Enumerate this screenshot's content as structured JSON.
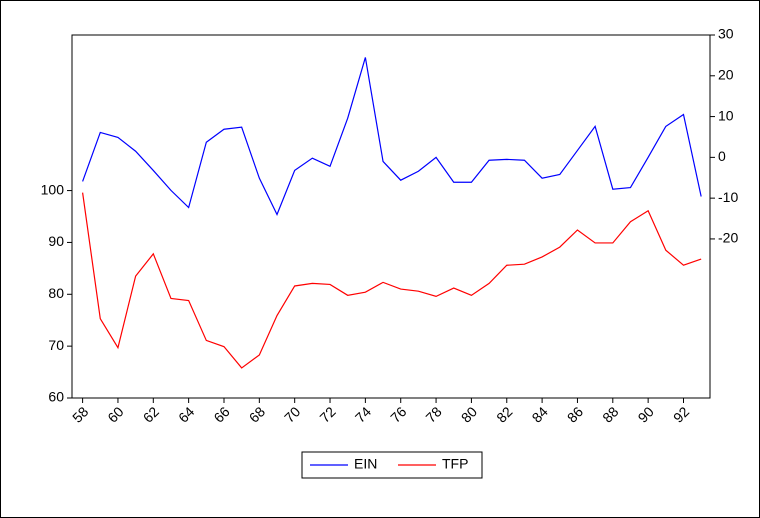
{
  "chart_data": {
    "type": "line",
    "x": [
      58,
      59,
      60,
      61,
      62,
      63,
      64,
      65,
      66,
      67,
      68,
      69,
      70,
      71,
      72,
      73,
      74,
      75,
      76,
      77,
      78,
      79,
      80,
      81,
      82,
      83,
      84,
      85,
      86,
      87,
      88,
      89,
      90,
      91,
      92,
      93
    ],
    "series": [
      {
        "name": "EIN",
        "color": "#0000ff",
        "axis": "y2",
        "values": [
          -5.9,
          6.1,
          4.9,
          1.5,
          -3.2,
          -8.1,
          -12.3,
          3.7,
          6.9,
          7.4,
          -5.1,
          -14,
          -3.2,
          -0.2,
          -2.2,
          9.6,
          24.5,
          -1,
          -5.6,
          -3.4,
          0,
          -6.1,
          -6.1,
          -0.7,
          -0.5,
          -0.7,
          -5.1,
          -4.2,
          1.7,
          7.6,
          -7.8,
          -7.4,
          0,
          7.6,
          10.5,
          -9.6
        ]
      },
      {
        "name": "TFP",
        "color": "#ff0000",
        "values": [
          99.6,
          75.3,
          69.7,
          83.5,
          87.8,
          79.2,
          78.8,
          71.1,
          69.9,
          65.8,
          68.3,
          75.9,
          81.6,
          82.1,
          81.9,
          79.8,
          80.4,
          82.3,
          81,
          80.6,
          79.6,
          81.2,
          79.8,
          82.1,
          85.6,
          85.8,
          87.2,
          89.1,
          92.4,
          89.9,
          89.9,
          94,
          96.1,
          88.5,
          85.6,
          86.8
        ]
      }
    ],
    "xlim": [
      57.4,
      93.5
    ],
    "xticks": [
      58,
      60,
      62,
      64,
      66,
      68,
      70,
      72,
      74,
      76,
      78,
      80,
      82,
      84,
      86,
      88,
      90,
      92
    ],
    "ylim": [
      60,
      130
    ],
    "yticks": [
      60,
      70,
      80,
      90,
      100
    ],
    "y2lim": [
      -59,
      30
    ],
    "y2ticks": [
      -20,
      -10,
      0,
      10,
      20,
      30
    ],
    "legend": "bottom"
  }
}
